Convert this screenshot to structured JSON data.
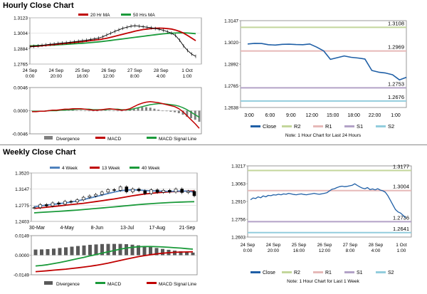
{
  "hourly_section": {
    "title": "Hourly Close Chart"
  },
  "weekly_section": {
    "title": "Weekly Close Chart"
  },
  "chart_data": [
    {
      "id": "hourly_price",
      "type": "line",
      "legend": [
        {
          "name": "20 Hr MA",
          "color": "#c00000"
        },
        {
          "name": "50 Hrs MA",
          "color": "#1a9a3a"
        }
      ],
      "y_ticks": [
        "1.3123",
        "1.3004",
        "1.2884",
        "1.2765"
      ],
      "ylim": [
        1.2765,
        1.3123
      ],
      "x_ticks": [
        {
          "line1": "24 Sep",
          "line2": "0:00"
        },
        {
          "line1": "24 Sep",
          "line2": "20:00"
        },
        {
          "line1": "25 Sep",
          "line2": "16:00"
        },
        {
          "line1": "26 Sep",
          "line2": "12:00"
        },
        {
          "line1": "27 Sep",
          "line2": "8:00"
        },
        {
          "line1": "28 Sep",
          "line2": "4:00"
        },
        {
          "line1": "1 Oct",
          "line2": "1:00"
        }
      ],
      "series": [
        {
          "name": "Close",
          "color": "#000000",
          "values": [
            1.2898,
            1.2902,
            1.2906,
            1.291,
            1.2914,
            1.2918,
            1.2921,
            1.2925,
            1.2928,
            1.2931,
            1.2934,
            1.2938,
            1.2942,
            1.2946,
            1.295,
            1.2955,
            1.296,
            1.2966,
            1.2976,
            1.299,
            1.3004,
            1.3018,
            1.303,
            1.3042,
            1.305,
            1.3058,
            1.3062,
            1.3058,
            1.3054,
            1.305,
            1.3046,
            1.304,
            1.3034,
            1.3026,
            1.3016,
            1.3004,
            1.2986,
            1.295,
            1.2905,
            1.287,
            1.2842,
            1.2825
          ]
        },
        {
          "name": "20 Hr MA",
          "color": "#c00000",
          "values": [
            1.29,
            1.2902,
            1.2904,
            1.2907,
            1.291,
            1.2913,
            1.2916,
            1.2919,
            1.2922,
            1.2926,
            1.2929,
            1.2932,
            1.2935,
            1.2938,
            1.2942,
            1.2946,
            1.295,
            1.2954,
            1.2959,
            1.2965,
            1.2972,
            1.298,
            1.2988,
            1.2996,
            1.3004,
            1.3012,
            1.302,
            1.3026,
            1.3032,
            1.3036,
            1.304,
            1.3042,
            1.3043,
            1.3042,
            1.304,
            1.3036,
            1.3028,
            1.3018,
            1.3004,
            1.2986,
            1.2966,
            1.2946
          ]
        },
        {
          "name": "50 Hrs MA",
          "color": "#1a9a3a",
          "values": [
            1.2906,
            1.2907,
            1.2908,
            1.2909,
            1.291,
            1.2911,
            1.2912,
            1.2914,
            1.2916,
            1.2918,
            1.292,
            1.2922,
            1.2924,
            1.2926,
            1.2928,
            1.2931,
            1.2934,
            1.2937,
            1.294,
            1.2944,
            1.2948,
            1.2952,
            1.2956,
            1.296,
            1.2964,
            1.2968,
            1.2972,
            1.2976,
            1.298,
            1.2984,
            1.2988,
            1.2992,
            1.2996,
            1.2999,
            1.3002,
            1.3004,
            1.3005,
            1.3006,
            1.3006,
            1.3005,
            1.3003,
            1.3
          ]
        }
      ]
    },
    {
      "id": "hourly_macd",
      "type": "bar",
      "legend": [
        {
          "name": "Divergence",
          "color": "#7f7f7f"
        },
        {
          "name": "MACD",
          "color": "#c00000"
        },
        {
          "name": "MACD Signal Line",
          "color": "#1a9a3a"
        }
      ],
      "y_ticks": [
        "0.0046",
        "0.0000",
        "-0.0046"
      ],
      "ylim": [
        -0.0046,
        0.0046
      ],
      "series": [
        {
          "name": "MACD",
          "color": "#c00000",
          "values": [
            -0.0002,
            -0.0002,
            -0.0001,
            -0.0001,
            0.0,
            0.0001,
            0.0001,
            0.0002,
            0.0003,
            0.0003,
            0.0004,
            0.0004,
            0.0004,
            0.0003,
            0.0002,
            0.0001,
            0.0001,
            0.0002,
            0.0003,
            0.0004,
            0.0003,
            0.0002,
            0.0001,
            0.0002,
            0.0004,
            0.0008,
            0.0012,
            0.0015,
            0.0017,
            0.0018,
            0.0017,
            0.0016,
            0.0014,
            0.0012,
            0.001,
            0.0008,
            0.0004,
            -0.0002,
            -0.001,
            -0.0018,
            -0.0026,
            -0.0035
          ]
        },
        {
          "name": "MACD Signal Line",
          "color": "#1a9a3a",
          "values": [
            -0.0001,
            -0.0001,
            -0.0001,
            -0.0001,
            0.0,
            0.0,
            0.0,
            0.0001,
            0.0001,
            0.0002,
            0.0002,
            0.0003,
            0.0003,
            0.0003,
            0.0003,
            0.0002,
            0.0002,
            0.0002,
            0.0002,
            0.0003,
            0.0003,
            0.0003,
            0.0002,
            0.0002,
            0.0002,
            0.0004,
            0.0006,
            0.0008,
            0.001,
            0.0012,
            0.0013,
            0.0014,
            0.0014,
            0.0013,
            0.0012,
            0.0011,
            0.0009,
            0.0006,
            0.0002,
            -0.0003,
            -0.0008,
            -0.0013
          ]
        },
        {
          "name": "Divergence",
          "color": "#7f7f7f",
          "values": [
            -0.0001,
            -0.0001,
            0.0,
            0.0,
            0.0,
            0.0001,
            0.0001,
            0.0001,
            0.0002,
            0.0001,
            0.0002,
            0.0001,
            0.0001,
            0.0,
            -0.0001,
            -0.0001,
            -0.0001,
            0.0,
            0.0001,
            0.0001,
            0.0,
            -0.0001,
            -0.0001,
            0.0,
            0.0002,
            0.0004,
            0.0006,
            0.0007,
            0.0007,
            0.0006,
            0.0004,
            0.0002,
            0.0,
            -0.0001,
            -0.0002,
            -0.0003,
            -0.0005,
            -0.0008,
            -0.0012,
            -0.0015,
            -0.0018,
            -0.0022
          ]
        }
      ]
    },
    {
      "id": "hourly_close_pivots",
      "type": "line",
      "y_ticks": [
        "1.3147",
        "1.3020",
        "1.2892",
        "1.2765",
        "1.2638"
      ],
      "ylim": [
        1.2638,
        1.3147
      ],
      "x_ticks": [
        "3:00",
        "6:00",
        "9:00",
        "12:00",
        "15:00",
        "18:00",
        "22:00",
        "1:00"
      ],
      "levels": [
        {
          "name": "R2",
          "value": 1.3108,
          "label": "1.3108",
          "color": "#c3d69b"
        },
        {
          "name": "R1",
          "value": 1.2969,
          "label": "1.2969",
          "color": "#e6b9b8"
        },
        {
          "name": "S1",
          "value": 1.2753,
          "label": "1.2753",
          "color": "#b3a2c7"
        },
        {
          "name": "S2",
          "value": 1.2676,
          "label": "1.2676",
          "color": "#93cddd"
        }
      ],
      "series": [
        {
          "name": "Close",
          "color": "#1f5fa6",
          "values": [
            1.301,
            1.3014,
            1.3013,
            1.3006,
            1.3004,
            1.3008,
            1.3009,
            1.3007,
            1.3006,
            1.301,
            1.2992,
            1.297,
            1.292,
            1.293,
            1.294,
            1.2932,
            1.2928,
            1.2922,
            1.2855,
            1.2845,
            1.284,
            1.283,
            1.28,
            1.2815
          ]
        }
      ],
      "legend": [
        "Close",
        "R2",
        "R1",
        "S1",
        "S2"
      ],
      "note": "Note: 1 Hour Chart for Last 24 Hours"
    },
    {
      "id": "weekly_price",
      "type": "candlestick",
      "legend": [
        {
          "name": "4 Week",
          "color": "#4f81bd"
        },
        {
          "name": "13 Week",
          "color": "#c00000"
        },
        {
          "name": "40 Week",
          "color": "#1a9a3a"
        }
      ],
      "y_ticks": [
        "1.3520",
        "1.3147",
        "1.2775",
        "1.2403"
      ],
      "ylim": [
        1.2403,
        1.352
      ],
      "x_ticks": [
        "30-Mar",
        "4-May",
        "8-Jun",
        "13-Jul",
        "17-Aug",
        "21-Sep"
      ],
      "series": [
        {
          "name": "Close",
          "color": "#000000",
          "values": [
            1.272,
            1.279,
            1.276,
            1.283,
            1.28,
            1.2865,
            1.285,
            1.29,
            1.296,
            1.299,
            1.3025,
            1.308,
            1.3135,
            1.312,
            1.32,
            1.3085,
            1.315,
            1.311,
            1.3045,
            1.313,
            1.3075,
            1.312,
            1.308,
            1.315,
            1.307,
            1.3095,
            1.2995
          ]
        },
        {
          "name": "4 Week",
          "color": "#4f81bd",
          "values": [
            1.274,
            1.276,
            1.278,
            1.2795,
            1.281,
            1.283,
            1.285,
            1.2875,
            1.2905,
            1.294,
            1.2975,
            1.301,
            1.3045,
            1.308,
            1.311,
            1.3125,
            1.313,
            1.3125,
            1.3115,
            1.311,
            1.3105,
            1.31,
            1.3095,
            1.31,
            1.3105,
            1.31,
            1.308
          ]
        },
        {
          "name": "13 Week",
          "color": "#c00000",
          "values": [
            1.27,
            1.2715,
            1.273,
            1.2745,
            1.276,
            1.2775,
            1.279,
            1.2805,
            1.282,
            1.284,
            1.286,
            1.288,
            1.29,
            1.292,
            1.2945,
            1.297,
            1.2995,
            1.3015,
            1.3035,
            1.305,
            1.3065,
            1.3075,
            1.3085,
            1.3092,
            1.3098,
            1.3102,
            1.3105
          ]
        },
        {
          "name": "40 Week",
          "color": "#1a9a3a",
          "values": [
            1.26,
            1.261,
            1.2618,
            1.2626,
            1.2635,
            1.2645,
            1.2655,
            1.2665,
            1.2676,
            1.2688,
            1.27,
            1.2712,
            1.2725,
            1.2738,
            1.2752,
            1.2765,
            1.2778,
            1.279,
            1.2802,
            1.2812,
            1.2822,
            1.283,
            1.2838,
            1.2845,
            1.285,
            1.2855,
            1.2858
          ]
        }
      ]
    },
    {
      "id": "weekly_macd",
      "type": "bar",
      "legend": [
        {
          "name": "Divergence",
          "color": "#595959"
        },
        {
          "name": "MACD",
          "color": "#1a9a3a"
        },
        {
          "name": "MACD Signal Line",
          "color": "#c00000"
        }
      ],
      "y_ticks": [
        "0.0149",
        "0.0000",
        "-0.0149"
      ],
      "ylim": [
        -0.0149,
        0.0149
      ],
      "series": [
        {
          "name": "MACD",
          "color": "#1a9a3a",
          "values": [
            -0.0082,
            -0.0078,
            -0.0072,
            -0.0064,
            -0.0055,
            -0.0046,
            -0.0036,
            -0.0026,
            -0.0016,
            -0.0005,
            0.0005,
            0.0016,
            0.0026,
            0.0036,
            0.0046,
            0.0054,
            0.006,
            0.0064,
            0.0066,
            0.0066,
            0.0065,
            0.0063,
            0.006,
            0.0057,
            0.0054,
            0.005,
            0.0046
          ]
        },
        {
          "name": "MACD Signal Line",
          "color": "#c00000",
          "values": [
            -0.0125,
            -0.0122,
            -0.0118,
            -0.0114,
            -0.011,
            -0.0106,
            -0.0101,
            -0.0096,
            -0.009,
            -0.0084,
            -0.0077,
            -0.0069,
            -0.006,
            -0.005,
            -0.004,
            -0.003,
            -0.002,
            -0.0011,
            -0.0003,
            0.0004,
            0.001,
            0.0015,
            0.0019,
            0.0022,
            0.0024,
            0.0025,
            0.0026
          ]
        },
        {
          "name": "Divergence",
          "color": "#595959",
          "values": [
            0.0043,
            0.0044,
            0.0046,
            0.005,
            0.0055,
            0.006,
            0.0065,
            0.007,
            0.0074,
            0.0079,
            0.0082,
            0.0085,
            0.0086,
            0.0086,
            0.0086,
            0.0084,
            0.008,
            0.0075,
            0.0069,
            0.0062,
            0.0055,
            0.0048,
            0.0041,
            0.0035,
            0.003,
            0.0025,
            0.002
          ]
        }
      ]
    },
    {
      "id": "weekly_close_pivots",
      "type": "line",
      "y_ticks": [
        "1.3217",
        "1.3063",
        "1.2910",
        "1.2756",
        "1.2603"
      ],
      "ylim": [
        1.2603,
        1.3217
      ],
      "x_ticks": [
        {
          "line1": "24 Sep",
          "line2": "0:00"
        },
        {
          "line1": "24 Sep",
          "line2": "20:00"
        },
        {
          "line1": "25 Sep",
          "line2": "16:00"
        },
        {
          "line1": "26 Sep",
          "line2": "12:00"
        },
        {
          "line1": "27 Sep",
          "line2": "8:00"
        },
        {
          "line1": "28 Sep",
          "line2": "4:00"
        },
        {
          "line1": "1 Oct",
          "line2": "1:00"
        }
      ],
      "levels": [
        {
          "name": "R2",
          "value": 1.3177,
          "label": "1.3177",
          "color": "#c3d69b"
        },
        {
          "name": "R1",
          "value": 1.3004,
          "label": "1.3004",
          "color": "#e6b9b8"
        },
        {
          "name": "S1",
          "value": 1.2736,
          "label": "1.2736",
          "color": "#b3a2c7"
        },
        {
          "name": "S2",
          "value": 1.2641,
          "label": "1.2641",
          "color": "#93cddd"
        }
      ],
      "series": [
        {
          "name": "Close",
          "color": "#1f5fa6",
          "values": [
            1.2925,
            1.294,
            1.2935,
            1.295,
            1.2942,
            1.2958,
            1.295,
            1.2962,
            1.296,
            1.2968,
            1.2965,
            1.2972,
            1.2968,
            1.2975,
            1.2972,
            1.298,
            1.2975,
            1.297,
            1.2968,
            1.2972,
            1.2975,
            1.297,
            1.2968,
            1.2972,
            1.2975,
            1.298,
            1.2975,
            1.2972,
            1.2976,
            1.298,
            1.2985,
            1.3,
            1.3015,
            1.302,
            1.303,
            1.3038,
            1.3042,
            1.3038,
            1.304,
            1.3045,
            1.305,
            1.3062,
            1.3048,
            1.3035,
            1.3025,
            1.302,
            1.303,
            1.3012,
            1.3018,
            1.301,
            1.302,
            1.3008,
            1.3002,
            1.299,
            1.296,
            1.292,
            1.288,
            1.284,
            1.282,
            1.281,
            1.279,
            1.277
          ]
        }
      ],
      "legend": [
        "Close",
        "R2",
        "R1",
        "S1",
        "S2"
      ],
      "note": "Note: 1 Hour Chart for Last 1 Week"
    }
  ]
}
